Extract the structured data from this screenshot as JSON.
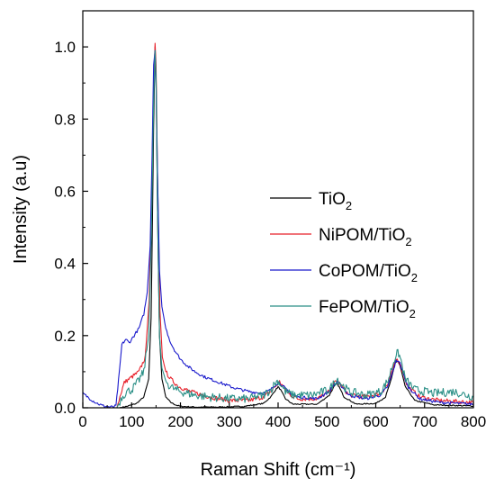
{
  "chart_data": {
    "type": "line",
    "xlabel": "Raman Shift  (cm⁻¹)",
    "ylabel": "Intensity (a.u)",
    "xlim": [
      0,
      800
    ],
    "ylim": [
      0,
      1.1
    ],
    "xticks": [
      0,
      100,
      200,
      300,
      400,
      500,
      600,
      700,
      800
    ],
    "xtick_labels": [
      "0",
      "100",
      "200",
      "300",
      "400",
      "500",
      "600",
      "700",
      "800"
    ],
    "yticks": [
      0.0,
      0.2,
      0.4,
      0.6,
      0.8,
      1.0
    ],
    "ytick_labels": [
      "0.0",
      "0.2",
      "0.4",
      "0.6",
      "0.8",
      "1.0"
    ],
    "grid": false,
    "legend_position": "right-middle",
    "series": [
      {
        "name": "TiO",
        "name_sub": "2",
        "color": "#000000",
        "x": [
          75,
          90,
          110,
          125,
          135,
          140,
          145,
          148,
          150,
          153,
          157,
          162,
          170,
          180,
          190,
          200,
          230,
          280,
          330,
          370,
          385,
          395,
          400,
          405,
          415,
          430,
          480,
          505,
          515,
          520,
          525,
          535,
          560,
          600,
          620,
          632,
          640,
          645,
          650,
          660,
          680,
          720,
          800
        ],
        "y": [
          0.0,
          0.004,
          0.012,
          0.03,
          0.08,
          0.25,
          0.78,
          1.0,
          0.92,
          0.55,
          0.2,
          0.08,
          0.03,
          0.015,
          0.008,
          0.004,
          0.002,
          0.002,
          0.004,
          0.012,
          0.03,
          0.05,
          0.058,
          0.05,
          0.025,
          0.01,
          0.01,
          0.035,
          0.06,
          0.068,
          0.058,
          0.03,
          0.01,
          0.012,
          0.03,
          0.08,
          0.125,
          0.13,
          0.115,
          0.06,
          0.02,
          0.008,
          0.005
        ]
      },
      {
        "name": "NiPOM/TiO",
        "name_sub": "2",
        "color": "#e8202a",
        "x": [
          70,
          78,
          85,
          100,
          115,
          128,
          136,
          141,
          145,
          148,
          150,
          153,
          158,
          163,
          170,
          180,
          195,
          220,
          260,
          300,
          340,
          370,
          385,
          395,
          403,
          410,
          420,
          440,
          480,
          505,
          515,
          522,
          530,
          545,
          580,
          610,
          625,
          635,
          642,
          648,
          655,
          665,
          690,
          730,
          800
        ],
        "y": [
          0.0,
          0.04,
          0.07,
          0.085,
          0.1,
          0.14,
          0.3,
          0.6,
          0.9,
          1.01,
          0.95,
          0.65,
          0.27,
          0.14,
          0.1,
          0.08,
          0.06,
          0.045,
          0.03,
          0.02,
          0.02,
          0.03,
          0.045,
          0.06,
          0.072,
          0.06,
          0.04,
          0.025,
          0.025,
          0.045,
          0.068,
          0.075,
          0.06,
          0.035,
          0.03,
          0.04,
          0.065,
          0.105,
          0.135,
          0.13,
          0.1,
          0.06,
          0.03,
          0.02,
          0.015
        ]
      },
      {
        "name": "CoPOM/TiO",
        "name_sub": "2",
        "color": "#1a1acc",
        "x": [
          0,
          10,
          20,
          30,
          40,
          50,
          60,
          68,
          75,
          80,
          88,
          95,
          105,
          115,
          125,
          132,
          138,
          142,
          145,
          148,
          150,
          153,
          157,
          162,
          170,
          180,
          190,
          200,
          215,
          230,
          250,
          280,
          310,
          340,
          370,
          385,
          395,
          402,
          410,
          420,
          440,
          480,
          505,
          515,
          522,
          530,
          545,
          580,
          610,
          625,
          635,
          642,
          648,
          655,
          665,
          690,
          730,
          770,
          800
        ],
        "y": [
          0.04,
          0.03,
          0.02,
          0.012,
          0.006,
          0.003,
          0.002,
          0.005,
          0.1,
          0.175,
          0.19,
          0.18,
          0.2,
          0.22,
          0.26,
          0.32,
          0.45,
          0.7,
          0.95,
          0.99,
          0.9,
          0.65,
          0.38,
          0.28,
          0.22,
          0.18,
          0.155,
          0.135,
          0.115,
          0.1,
          0.085,
          0.07,
          0.055,
          0.045,
          0.04,
          0.05,
          0.065,
          0.07,
          0.06,
          0.045,
          0.03,
          0.025,
          0.045,
          0.065,
          0.07,
          0.06,
          0.035,
          0.025,
          0.035,
          0.06,
          0.1,
          0.13,
          0.13,
          0.1,
          0.06,
          0.025,
          0.015,
          0.012,
          0.01
        ]
      },
      {
        "name": "FePOM/TiO",
        "name_sub": "2",
        "color": "#2a8f86",
        "x": [
          70,
          80,
          90,
          100,
          112,
          125,
          135,
          140,
          145,
          148,
          150,
          153,
          157,
          162,
          170,
          178,
          190,
          200,
          215,
          230,
          260,
          300,
          340,
          370,
          385,
          395,
          400,
          405,
          415,
          430,
          470,
          505,
          515,
          522,
          530,
          545,
          580,
          610,
          625,
          635,
          642,
          647,
          652,
          660,
          680,
          720,
          760,
          800
        ],
        "y": [
          0.0,
          0.03,
          0.045,
          0.05,
          0.07,
          0.1,
          0.2,
          0.45,
          0.85,
          0.99,
          0.92,
          0.55,
          0.2,
          0.11,
          0.075,
          0.06,
          0.05,
          0.045,
          0.04,
          0.035,
          0.03,
          0.025,
          0.025,
          0.035,
          0.05,
          0.07,
          0.075,
          0.065,
          0.045,
          0.035,
          0.035,
          0.05,
          0.07,
          0.08,
          0.065,
          0.045,
          0.035,
          0.045,
          0.075,
          0.12,
          0.15,
          0.15,
          0.13,
          0.08,
          0.05,
          0.04,
          0.045,
          0.03
        ]
      }
    ]
  }
}
